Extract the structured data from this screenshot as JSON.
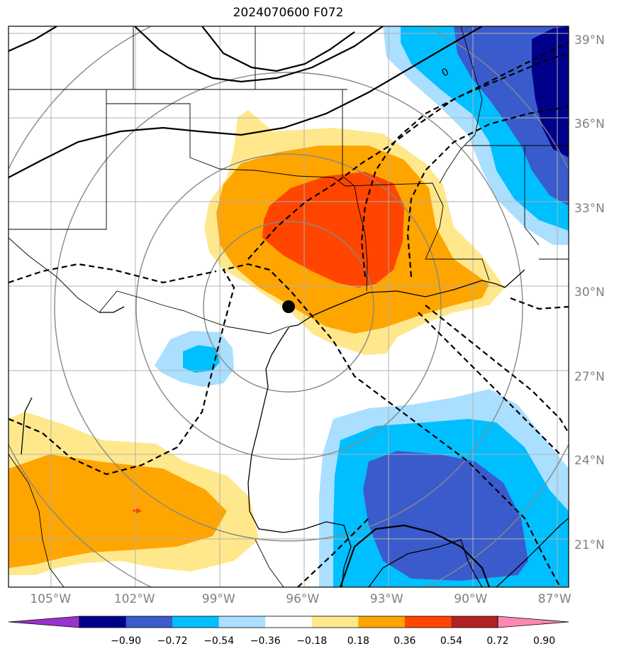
{
  "title": "2024070600 F072",
  "latitude_labels": [
    {
      "text": "39°N",
      "lat": 39
    },
    {
      "text": "36°N",
      "lat": 36
    },
    {
      "text": "33°N",
      "lat": 33
    },
    {
      "text": "30°N",
      "lat": 30
    },
    {
      "text": "27°N",
      "lat": 27
    },
    {
      "text": "24°N",
      "lat": 24
    },
    {
      "text": "21°N",
      "lat": 21
    }
  ],
  "longitude_labels": [
    {
      "text": "105°W",
      "lon": -105
    },
    {
      "text": "102°W",
      "lon": -102
    },
    {
      "text": "99°W",
      "lon": -99
    },
    {
      "text": "96°W",
      "lon": -96
    },
    {
      "text": "93°W",
      "lon": -93
    },
    {
      "text": "90°W",
      "lon": -90
    },
    {
      "text": "87°W",
      "lon": -87
    }
  ],
  "map_extent": {
    "lon_min": -106.5,
    "lon_max": -86.5,
    "lat_min": 19.5,
    "lat_max": 39.5
  },
  "center_marker": {
    "lon": -96.6,
    "lat": 29.3,
    "color": "#000000"
  },
  "contour_label": {
    "text": "0",
    "lon": -91.9,
    "lat": 38.3
  },
  "colorbar": {
    "extend": "both",
    "tick_labels": [
      "−0.90",
      "−0.72",
      "−0.54",
      "−0.36",
      "−0.18",
      "0.18",
      "0.36",
      "0.54",
      "0.72",
      "0.90"
    ],
    "colors": [
      "#9932cc",
      "#00008b",
      "#3a5bcc",
      "#00bfff",
      "#aadfff",
      "#ffffff",
      "#ffe88c",
      "#ffa500",
      "#ff4500",
      "#b22222",
      "#ff88b0"
    ]
  }
}
